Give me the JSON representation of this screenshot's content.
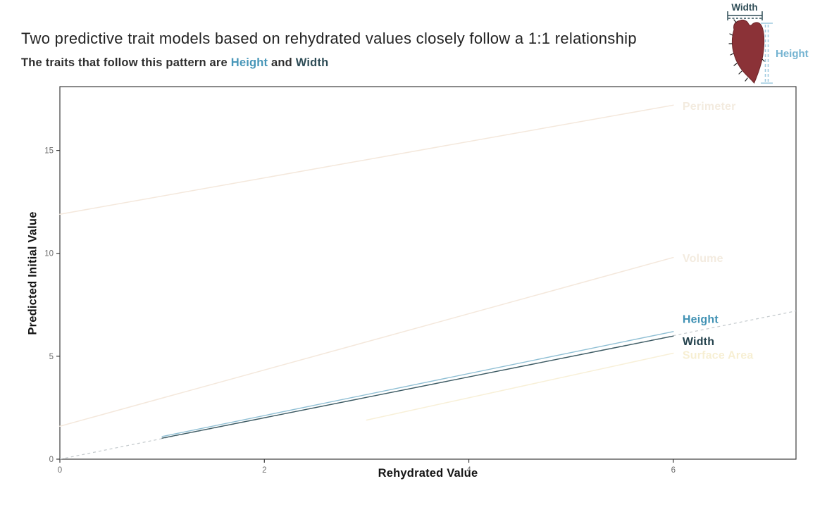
{
  "chart_data": {
    "type": "line",
    "title": "Two predictive trait models based on rehydrated values closely follow a 1:1 relationship",
    "subtitle": {
      "prefix": "The traits that follow this pattern are ",
      "trait1": "Height",
      "connector": " and ",
      "trait2": "Width",
      "trait1_color": "#4796b8",
      "trait2_color": "#2e4c56"
    },
    "xlabel": "Rehydrated Value",
    "ylabel": "Predicted Initial Value",
    "xlim": [
      0,
      7.2
    ],
    "ylim": [
      0,
      18.1
    ],
    "xticks": [
      0,
      2,
      4,
      6
    ],
    "yticks": [
      0,
      5,
      10,
      15
    ],
    "grid": false,
    "legend": "direct labels at right end of lines",
    "axis_color": "#3c3c3c",
    "tick_label_color": "#6b6b6b",
    "reference_line": {
      "label": "1:1",
      "style": "dashed",
      "color": "#c3c9cc",
      "x": [
        0,
        7.2
      ],
      "y": [
        0,
        7.2
      ]
    },
    "series": [
      {
        "name": "Perimeter",
        "x": [
          0,
          6
        ],
        "y": [
          11.9,
          17.2
        ],
        "color": "#f4e8dc",
        "label_color": "#f3ebdf",
        "label_x": 6.09,
        "label_y": 17.15
      },
      {
        "name": "Volume",
        "x": [
          0,
          6
        ],
        "y": [
          1.6,
          9.8
        ],
        "color": "#f4e8dc",
        "label_color": "#f3ebdf",
        "label_x": 6.09,
        "label_y": 9.75
      },
      {
        "name": "Surface Area",
        "x": [
          3,
          6
        ],
        "y": [
          1.9,
          5.15
        ],
        "color": "#f8f0d8",
        "label_color": "#f7efd3",
        "label_x": 6.09,
        "label_y": 5.05
      },
      {
        "name": "Height",
        "x": [
          1,
          6
        ],
        "y": [
          1.1,
          6.2
        ],
        "color": "#8fbfd4",
        "label_color": "#4192b4",
        "label_x": 6.09,
        "label_y": 6.8
      },
      {
        "name": "Width",
        "x": [
          1,
          6
        ],
        "y": [
          1.02,
          5.98
        ],
        "color": "#3c5a63",
        "label_color": "#24424d",
        "label_x": 6.09,
        "label_y": 5.72
      }
    ]
  },
  "illustration": {
    "width_label": "Width",
    "height_label": "Height",
    "seed_fill": "#8b3237",
    "seed_stroke": "#6c2428",
    "spike_color": "#1d1d1d",
    "width_measure_color": "#2e4c56",
    "height_measure_color": "#9ecadf",
    "height_label_color": "#74b3d1"
  }
}
